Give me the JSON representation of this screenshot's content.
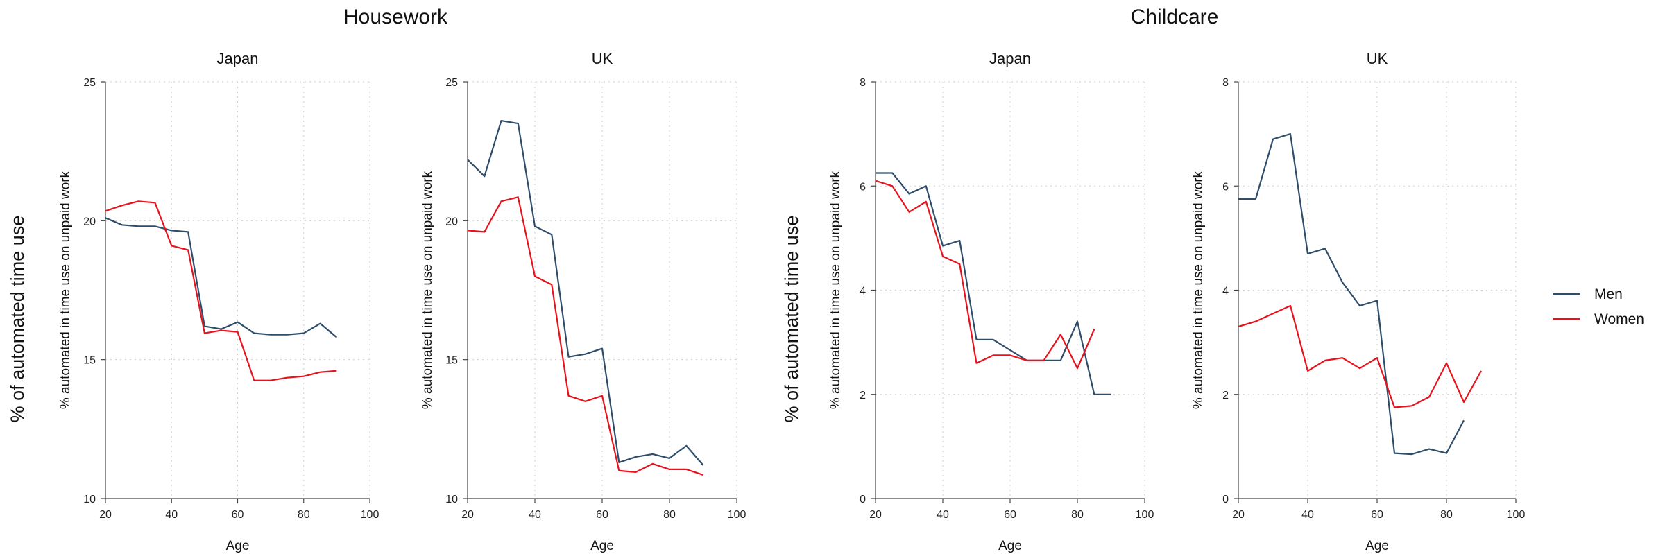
{
  "figure": {
    "groups": [
      "Housework",
      "Childcare"
    ],
    "shared_ylabel": "% of automated time use",
    "legend": [
      {
        "label": "Men",
        "color": "#2e4d6b"
      },
      {
        "label": "Women",
        "color": "#e8121c"
      }
    ]
  },
  "chart_data": [
    {
      "type": "line",
      "group": "Housework",
      "title": "Japan",
      "xlabel": "Age",
      "ylabel": "% automated in time use on unpaid work",
      "xlim": [
        20,
        100
      ],
      "ylim": [
        10,
        25
      ],
      "xticks": [
        20,
        40,
        60,
        80,
        100
      ],
      "yticks": [
        10,
        15,
        20,
        25
      ],
      "grid": true,
      "series": [
        {
          "name": "Men",
          "color": "#2e4d6b",
          "x": [
            20,
            25,
            30,
            35,
            40,
            45,
            50,
            55,
            60,
            65,
            70,
            75,
            80,
            85,
            90
          ],
          "y": [
            20.1,
            19.85,
            19.8,
            19.8,
            19.65,
            19.6,
            16.2,
            16.1,
            16.35,
            15.95,
            15.9,
            15.9,
            15.95,
            16.3,
            15.8
          ]
        },
        {
          "name": "Women",
          "color": "#e8121c",
          "x": [
            20,
            25,
            30,
            35,
            40,
            45,
            50,
            55,
            60,
            65,
            70,
            75,
            80,
            85,
            90
          ],
          "y": [
            20.35,
            20.55,
            20.7,
            20.65,
            19.1,
            18.95,
            15.95,
            16.05,
            16.0,
            14.25,
            14.25,
            14.35,
            14.4,
            14.55,
            14.6
          ]
        }
      ]
    },
    {
      "type": "line",
      "group": "Housework",
      "title": "UK",
      "xlabel": "Age",
      "ylabel": "% automated in time use on unpaid work",
      "xlim": [
        20,
        100
      ],
      "ylim": [
        10,
        25
      ],
      "xticks": [
        20,
        40,
        60,
        80,
        100
      ],
      "yticks": [
        10,
        15,
        20,
        25
      ],
      "grid": true,
      "series": [
        {
          "name": "Men",
          "color": "#2e4d6b",
          "x": [
            20,
            25,
            30,
            35,
            40,
            45,
            50,
            55,
            60,
            65,
            70,
            75,
            80,
            85,
            90
          ],
          "y": [
            22.2,
            21.6,
            23.6,
            23.5,
            19.8,
            19.5,
            15.1,
            15.2,
            15.4,
            11.3,
            11.5,
            11.6,
            11.45,
            11.9,
            11.2
          ]
        },
        {
          "name": "Women",
          "color": "#e8121c",
          "x": [
            20,
            25,
            30,
            35,
            40,
            45,
            50,
            55,
            60,
            65,
            70,
            75,
            80,
            85,
            90
          ],
          "y": [
            19.65,
            19.6,
            20.7,
            20.85,
            18.0,
            17.7,
            13.7,
            13.5,
            13.7,
            11.0,
            10.95,
            11.25,
            11.05,
            11.05,
            10.85
          ]
        }
      ]
    },
    {
      "type": "line",
      "group": "Childcare",
      "title": "Japan",
      "xlabel": "Age",
      "ylabel": "% automated in time use on unpaid work",
      "xlim": [
        20,
        100
      ],
      "ylim": [
        0,
        8
      ],
      "xticks": [
        20,
        40,
        60,
        80,
        100
      ],
      "yticks": [
        0,
        2,
        4,
        6,
        8
      ],
      "grid": true,
      "series": [
        {
          "name": "Men",
          "color": "#2e4d6b",
          "x": [
            20,
            25,
            30,
            35,
            40,
            45,
            50,
            55,
            60,
            65,
            70,
            75,
            80,
            85,
            90
          ],
          "y": [
            6.25,
            6.25,
            5.85,
            6.0,
            4.85,
            4.95,
            3.05,
            3.05,
            2.85,
            2.65,
            2.65,
            2.65,
            3.4,
            2.0,
            2.0
          ]
        },
        {
          "name": "Women",
          "color": "#e8121c",
          "x": [
            20,
            25,
            30,
            35,
            40,
            45,
            50,
            55,
            60,
            65,
            70,
            75,
            80,
            85
          ],
          "y": [
            6.1,
            6.0,
            5.5,
            5.7,
            4.65,
            4.5,
            2.6,
            2.75,
            2.75,
            2.65,
            2.65,
            3.15,
            2.5,
            3.25
          ]
        }
      ]
    },
    {
      "type": "line",
      "group": "Childcare",
      "title": "UK",
      "xlabel": "Age",
      "ylabel": "% automated in time use on unpaid work",
      "xlim": [
        20,
        100
      ],
      "ylim": [
        0,
        8
      ],
      "xticks": [
        20,
        40,
        60,
        80,
        100
      ],
      "yticks": [
        0,
        2,
        4,
        6,
        8
      ],
      "grid": true,
      "series": [
        {
          "name": "Men",
          "color": "#2e4d6b",
          "x": [
            20,
            25,
            30,
            35,
            40,
            45,
            50,
            55,
            60,
            65,
            70,
            75,
            80,
            85
          ],
          "y": [
            5.75,
            5.75,
            6.9,
            7.0,
            4.7,
            4.8,
            4.15,
            3.7,
            3.8,
            0.87,
            0.85,
            0.95,
            0.87,
            1.5
          ]
        },
        {
          "name": "Women",
          "color": "#e8121c",
          "x": [
            20,
            25,
            30,
            35,
            40,
            45,
            50,
            55,
            60,
            65,
            70,
            75,
            80,
            85,
            90
          ],
          "y": [
            3.3,
            3.4,
            3.55,
            3.7,
            2.45,
            2.65,
            2.7,
            2.5,
            2.7,
            1.75,
            1.78,
            1.95,
            2.6,
            1.85,
            2.45
          ]
        }
      ]
    }
  ]
}
